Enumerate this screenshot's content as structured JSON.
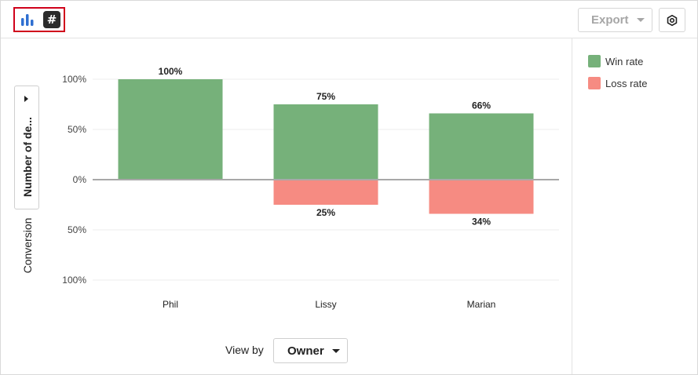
{
  "toolbar": {
    "export_label": "Export"
  },
  "icons": {
    "bar_chart": "bar-chart-icon",
    "number": "number-icon",
    "settings": "gear-icon"
  },
  "metric_selector": {
    "label": "Number of de..."
  },
  "y_axis_caption": "Conversion",
  "view_by": {
    "label": "View by",
    "selected": "Owner"
  },
  "chart_data": {
    "type": "bar",
    "stacked": "diverging",
    "categories": [
      "Phil",
      "Lissy",
      "Marian"
    ],
    "series": [
      {
        "name": "Win rate",
        "color": "#76b17a",
        "direction": "up",
        "values": [
          100,
          75,
          66
        ],
        "labels": [
          "100%",
          "75%",
          "66%"
        ]
      },
      {
        "name": "Loss rate",
        "color": "#f68b82",
        "direction": "down",
        "values": [
          0,
          25,
          34
        ],
        "labels": [
          "",
          "25%",
          "34%"
        ]
      }
    ],
    "y_ticks": [
      "100%",
      "50%",
      "0%",
      "50%",
      "100%"
    ],
    "ylim": [
      -100,
      100
    ],
    "grid": true,
    "legend_position": "right"
  }
}
